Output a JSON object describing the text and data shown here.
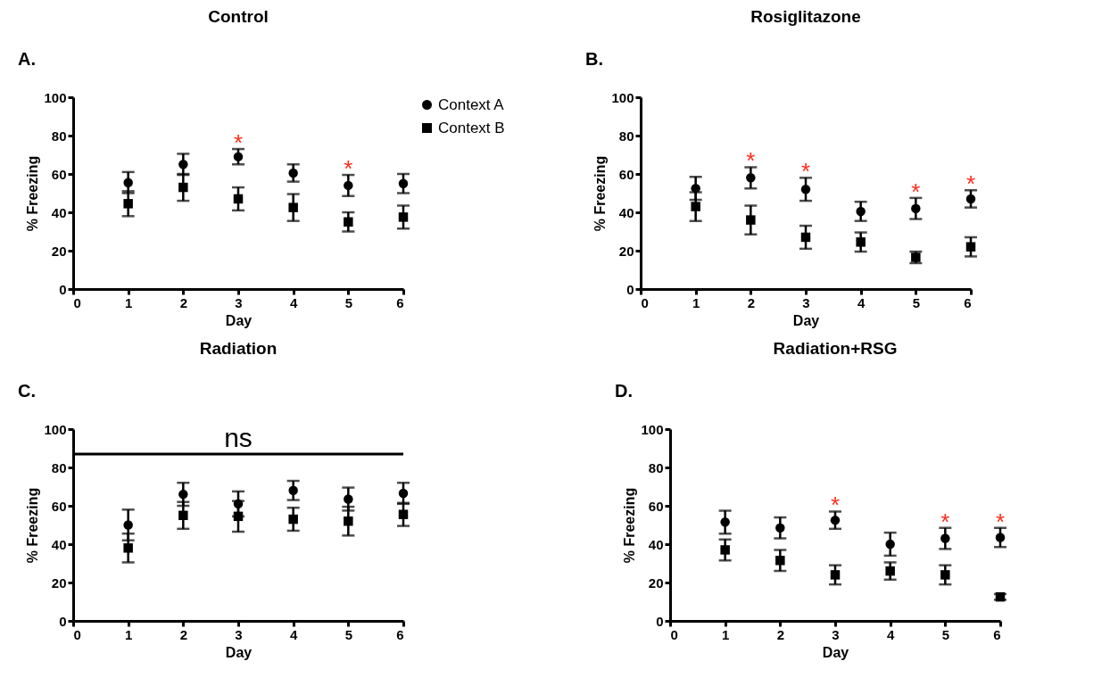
{
  "chart_data": [
    {
      "type": "scatter",
      "title": "Control",
      "xlabel": "Day",
      "ylabel": "% Freezing",
      "x": [
        1,
        2,
        3,
        4,
        5,
        6
      ],
      "xlim": [
        0,
        6
      ],
      "xticks": [
        0,
        1,
        2,
        3,
        4,
        5,
        6
      ],
      "ylim": [
        0,
        100
      ],
      "yticks": [
        0,
        20,
        40,
        60,
        80,
        100
      ],
      "legend": "top right",
      "annotations": [
        "A.",
        {
          "text": "*",
          "x": 3,
          "y": 69
        },
        {
          "text": "*",
          "x": 5,
          "y": 54
        }
      ],
      "series": [
        {
          "name": "Context A",
          "color": "#000000",
          "marker": "circle",
          "values": [
            55.5,
            65,
            69,
            60.5,
            54,
            55
          ],
          "errors": [
            5.5,
            5.5,
            4,
            4.5,
            5.5,
            5
          ]
        },
        {
          "name": "Context B",
          "color": "#000000",
          "marker": "square",
          "values": [
            44.5,
            53,
            47,
            42.5,
            35,
            37.5
          ],
          "errors": [
            6.5,
            7,
            6,
            7,
            5,
            6
          ]
        }
      ]
    },
    {
      "type": "scatter",
      "title": "Rosiglitazone",
      "xlabel": "Day",
      "ylabel": "% Freezing",
      "x": [
        1,
        2,
        3,
        4,
        5,
        6
      ],
      "xlim": [
        0,
        6
      ],
      "xticks": [
        0,
        1,
        2,
        3,
        4,
        5,
        6
      ],
      "ylim": [
        0,
        100
      ],
      "yticks": [
        0,
        20,
        40,
        60,
        80,
        100
      ],
      "annotations": [
        "B.",
        {
          "text": "*",
          "x": 2,
          "y": 58
        },
        {
          "text": "*",
          "x": 3,
          "y": 52
        },
        {
          "text": "*",
          "x": 5,
          "y": 42
        },
        {
          "text": "*",
          "x": 6,
          "y": 47
        }
      ],
      "series": [
        {
          "color": "#000000",
          "marker": "circle",
          "values": [
            52.5,
            58,
            52,
            40.5,
            42,
            47
          ],
          "errors": [
            6,
            5.5,
            6,
            5,
            5.5,
            4.5
          ]
        },
        {
          "color": "#000000",
          "marker": "square",
          "values": [
            43,
            36,
            27,
            24.5,
            16.5,
            22
          ],
          "errors": [
            7.5,
            7.5,
            6,
            5,
            3,
            5
          ]
        }
      ]
    },
    {
      "type": "scatter",
      "title": "Radiation",
      "xlabel": "Day",
      "ylabel": "% Freezing",
      "x": [
        1,
        2,
        3,
        4,
        5,
        6
      ],
      "xlim": [
        0,
        6
      ],
      "xticks": [
        0,
        1,
        2,
        3,
        4,
        5,
        6
      ],
      "ylim": [
        0,
        100
      ],
      "yticks": [
        0,
        20,
        40,
        60,
        80,
        100
      ],
      "annotations": [
        "C."
      ],
      "ref_lines": [
        {
          "axis": "y",
          "value": 87,
          "label": "ns",
          "color": "#000000"
        }
      ],
      "series": [
        {
          "color": "#000000",
          "marker": "circle",
          "values": [
            50,
            66,
            61,
            68,
            63.5,
            66.5
          ],
          "errors": [
            8,
            6,
            6.5,
            5,
            6,
            5.5
          ]
        },
        {
          "color": "#000000",
          "marker": "square",
          "values": [
            38,
            55,
            54.5,
            53,
            52,
            55.5
          ],
          "errors": [
            7.5,
            7,
            8,
            6,
            7.5,
            6
          ]
        }
      ]
    },
    {
      "type": "scatter",
      "title": "Radiation+RSG",
      "xlabel": "Day",
      "ylabel": "% Freezing",
      "x": [
        1,
        2,
        3,
        4,
        5,
        6
      ],
      "xlim": [
        0,
        6
      ],
      "xticks": [
        0,
        1,
        2,
        3,
        4,
        5,
        6
      ],
      "ylim": [
        0,
        100
      ],
      "yticks": [
        0,
        20,
        40,
        60,
        80,
        100
      ],
      "annotations": [
        "D.",
        {
          "text": "*",
          "x": 3,
          "y": 52.5
        },
        {
          "text": "*",
          "x": 5,
          "y": 43
        },
        {
          "text": "*",
          "x": 6,
          "y": 43.5
        }
      ],
      "series": [
        {
          "color": "#000000",
          "marker": "circle",
          "values": [
            51.5,
            48.5,
            52.5,
            40,
            43,
            43.5
          ],
          "errors": [
            6,
            5.5,
            4.5,
            6,
            5.5,
            5
          ]
        },
        {
          "color": "#000000",
          "marker": "square",
          "values": [
            37,
            31.5,
            24,
            26,
            24,
            12.5
          ],
          "errors": [
            5.5,
            5.5,
            5,
            4.5,
            5,
            1.5
          ]
        }
      ]
    }
  ]
}
